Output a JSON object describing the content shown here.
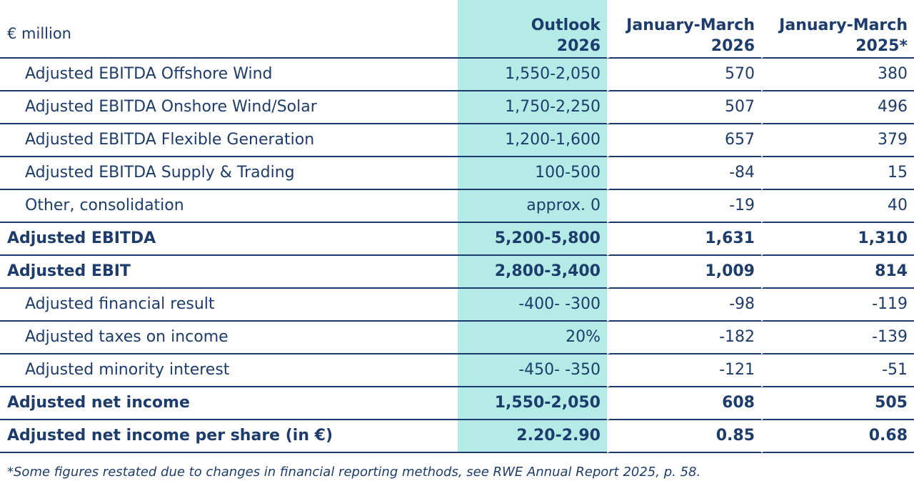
{
  "table": {
    "unit_label": "€ million",
    "columns": [
      {
        "line1": "Outlook",
        "line2": "2026"
      },
      {
        "line1": "January-March",
        "line2": "2026"
      },
      {
        "line1": "January-March",
        "line2": "2025*"
      }
    ],
    "rows": [
      {
        "label": "Adjusted EBITDA Offshore Wind",
        "style": "sub",
        "outlook": "1,550-2,050",
        "q1_2026": "570",
        "q1_2025": "380"
      },
      {
        "label": "Adjusted EBITDA Onshore Wind/Solar",
        "style": "sub",
        "outlook": "1,750-2,250",
        "q1_2026": "507",
        "q1_2025": "496"
      },
      {
        "label": "Adjusted EBITDA Flexible Generation",
        "style": "sub",
        "outlook": "1,200-1,600",
        "q1_2026": "657",
        "q1_2025": "379"
      },
      {
        "label": "Adjusted EBITDA Supply & Trading",
        "style": "sub",
        "outlook": "100-500",
        "q1_2026": "-84",
        "q1_2025": "15"
      },
      {
        "label": "Other, consolidation",
        "style": "sub",
        "outlook": "approx. 0",
        "q1_2026": "-19",
        "q1_2025": "40"
      },
      {
        "label": "Adjusted EBITDA",
        "style": "bold",
        "outlook": "5,200-5,800",
        "q1_2026": "1,631",
        "q1_2025": "1,310"
      },
      {
        "label": "Adjusted EBIT",
        "style": "bold",
        "outlook": "2,800-3,400",
        "q1_2026": "1,009",
        "q1_2025": "814"
      },
      {
        "label": "Adjusted financial result",
        "style": "sub",
        "outlook": "-400- -300",
        "q1_2026": "-98",
        "q1_2025": "-119"
      },
      {
        "label": "Adjusted taxes on income",
        "style": "sub",
        "outlook": "20%",
        "q1_2026": "-182",
        "q1_2025": "-139"
      },
      {
        "label": "Adjusted minority interest",
        "style": "sub",
        "outlook": "-450- -350",
        "q1_2026": "-121",
        "q1_2025": "-51"
      },
      {
        "label": "Adjusted net income",
        "style": "bold",
        "outlook": "1,550-2,050",
        "q1_2026": "608",
        "q1_2025": "505"
      },
      {
        "label": "Adjusted net income per share (in €)",
        "style": "bold",
        "outlook": "2.20-2.90",
        "q1_2026": "0.85",
        "q1_2025": "0.68"
      }
    ]
  },
  "footnote": "*Some figures restated due to changes in financial reporting methods, see RWE Annual Report 2025, p. 58.",
  "colors": {
    "text": "#1d3c6e",
    "outlook_highlight": "#b5ebe6"
  }
}
